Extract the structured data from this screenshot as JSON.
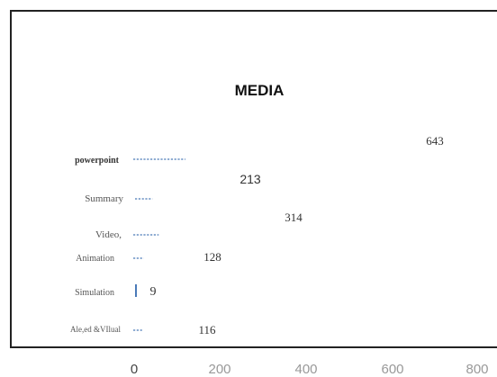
{
  "chart_data": {
    "type": "bar",
    "title": "MEDIA",
    "xlabel": "",
    "ylabel": "",
    "categories": [
      "powerpoint",
      "Summary",
      "Video,",
      "Animation",
      "Simulation",
      "Ale,ed  &VIlual"
    ],
    "values": [
      643,
      213,
      314,
      128,
      9,
      116
    ],
    "value_labels": [
      "643",
      "213",
      "314",
      "128",
      "9",
      "116"
    ],
    "xlim": [
      0,
      800
    ],
    "x_ticks": [
      "0",
      "200",
      "400",
      "600",
      "800"
    ],
    "grid": false,
    "legend": "none",
    "bar_color": "#4a7ab8",
    "frame_color": "#222222",
    "text_color": "#333333"
  }
}
